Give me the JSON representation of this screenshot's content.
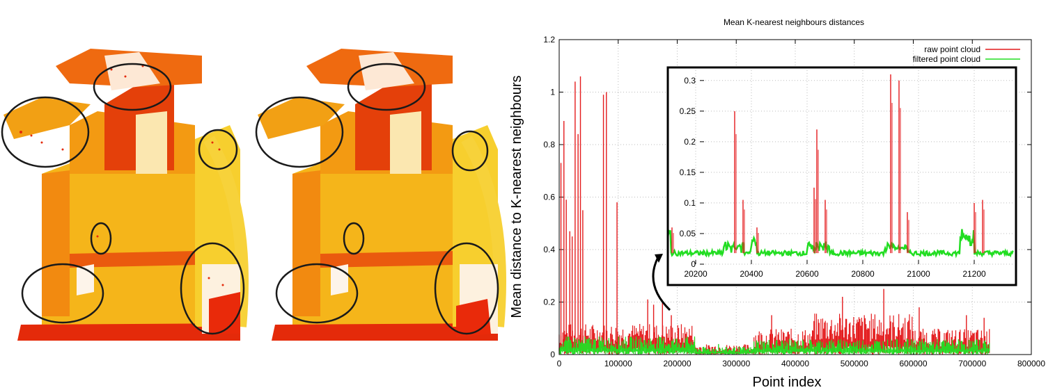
{
  "left_images": {
    "description_free": true,
    "colors": {
      "red": "#e8200a",
      "orange": "#f47a10",
      "yellow": "#f6c21a",
      "circle": "#1a1a1a"
    }
  },
  "chart_data": [
    {
      "type": "line",
      "title": "Mean K-nearest neighbours distances",
      "xlabel": "Point index",
      "ylabel": "Mean distance to K-nearest neighbours",
      "xlim": [
        0,
        800000
      ],
      "ylim": [
        0,
        1.2
      ],
      "x_ticks": [
        "0",
        "100000",
        "200000",
        "300000",
        "400000",
        "500000",
        "600000",
        "700000",
        "800000"
      ],
      "y_ticks": [
        "0",
        "0.2",
        "0.4",
        "0.6",
        "0.8",
        "1",
        "1.2"
      ],
      "grid": true,
      "legend_position": "top-right",
      "series": [
        {
          "name": "raw point cloud",
          "color": "#e41a1c",
          "baseline_segments": [
            [
              0,
              230000,
              0.06
            ],
            [
              230000,
              330000,
              0.02
            ],
            [
              330000,
              430000,
              0.05
            ],
            [
              430000,
              600000,
              0.08
            ],
            [
              600000,
              730000,
              0.05
            ]
          ],
          "spikes": [
            [
              3000,
              0.73
            ],
            [
              8000,
              0.89
            ],
            [
              12000,
              0.59
            ],
            [
              18000,
              0.47
            ],
            [
              22000,
              0.45
            ],
            [
              27000,
              1.04
            ],
            [
              32000,
              0.84
            ],
            [
              36000,
              1.06
            ],
            [
              40000,
              0.55
            ],
            [
              75000,
              0.99
            ],
            [
              80000,
              1.0
            ],
            [
              98000,
              0.58
            ],
            [
              150000,
              0.21
            ],
            [
              160000,
              0.19
            ],
            [
              175000,
              0.2
            ],
            [
              190000,
              0.15
            ],
            [
              360000,
              0.15
            ],
            [
              480000,
              0.22
            ],
            [
              550000,
              0.25
            ],
            [
              610000,
              0.18
            ],
            [
              690000,
              0.15
            ],
            [
              720000,
              0.14
            ]
          ]
        },
        {
          "name": "filtered point cloud",
          "color": "#22dd22",
          "baseline_segments": [
            [
              0,
              230000,
              0.035
            ],
            [
              230000,
              330000,
              0.015
            ],
            [
              330000,
              730000,
              0.03
            ]
          ],
          "spikes": [
            [
              50000,
              0.06
            ],
            [
              270000,
              0.04
            ],
            [
              400000,
              0.05
            ],
            [
              600000,
              0.05
            ]
          ]
        }
      ]
    },
    {
      "type": "line",
      "title": "",
      "xlabel": "",
      "ylabel": "",
      "xlim": [
        20100,
        21350
      ],
      "ylim": [
        0,
        0.31
      ],
      "x_ticks": [
        "20200",
        "20400",
        "20600",
        "20800",
        "21000",
        "21200"
      ],
      "y_ticks": [
        "0",
        "0.05",
        "0.1",
        "0.15",
        "0.2",
        "0.25",
        "0.3"
      ],
      "grid": true,
      "series": [
        {
          "name": "raw point cloud",
          "color": "#e41a1c",
          "spikes": [
            [
              20115,
              0.06
            ],
            [
              20340,
              0.25
            ],
            [
              20370,
              0.105
            ],
            [
              20420,
              0.06
            ],
            [
              20625,
              0.125
            ],
            [
              20635,
              0.22
            ],
            [
              20665,
              0.105
            ],
            [
              20900,
              0.31
            ],
            [
              20930,
              0.3
            ],
            [
              20960,
              0.085
            ],
            [
              21200,
              0.1
            ],
            [
              21230,
              0.105
            ]
          ]
        },
        {
          "name": "filtered point cloud",
          "color": "#22dd22",
          "bumps": [
            [
              20100,
              20110,
              0.06
            ],
            [
              20300,
              20370,
              0.035
            ],
            [
              20400,
              20420,
              0.05
            ],
            [
              20600,
              20680,
              0.035
            ],
            [
              20880,
              20960,
              0.035
            ],
            [
              21150,
              21200,
              0.055
            ]
          ],
          "baseline": 0.018
        }
      ]
    }
  ]
}
